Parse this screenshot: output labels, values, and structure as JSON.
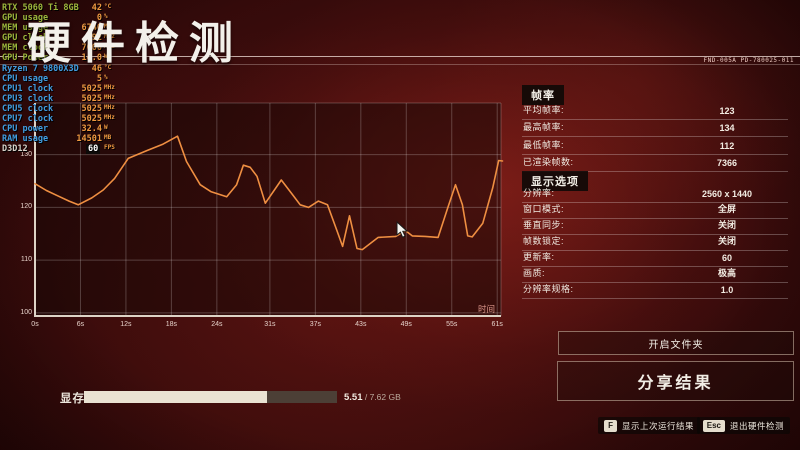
{
  "title": "硬件检测",
  "header_code": "FND-005A PD-780025-011",
  "colors": {
    "accent_orange": "#ef8f42",
    "gpu_label_green": "#9db53c",
    "cpu_label_blue": "#419ee2",
    "background_red": "#4a1010",
    "axis_white": "#ddd3c6"
  },
  "osd": {
    "rows": [
      {
        "label": "RTX 5060 Ti 8GB",
        "value": "42",
        "unit": "°C",
        "kind": "gpu"
      },
      {
        "label": "GPU usage",
        "value": "0",
        "unit": "%",
        "kind": "gpu"
      },
      {
        "label": "MEM usage",
        "value": "6740",
        "unit": "MB",
        "kind": "gpu"
      },
      {
        "label": "GPU clock",
        "value": "592",
        "unit": "MHz",
        "kind": "gpu"
      },
      {
        "label": "MEM clock",
        "value": "7000",
        "unit": "MHz",
        "kind": "gpu"
      },
      {
        "label": "GPU Power",
        "value": "14.0",
        "unit": "W",
        "kind": "gpu"
      },
      {
        "label": "Ryzen 7 9800X3D",
        "value": "46",
        "unit": "°C",
        "kind": "cpu"
      },
      {
        "label": "CPU usage",
        "value": "5",
        "unit": "%",
        "kind": "cpu"
      },
      {
        "label": "CPU1 clock",
        "value": "5025",
        "unit": "MHz",
        "kind": "cpu"
      },
      {
        "label": "CPU3 clock",
        "value": "5025",
        "unit": "MHz",
        "kind": "cpu"
      },
      {
        "label": "CPU5 clock",
        "value": "5025",
        "unit": "MHz",
        "kind": "cpu"
      },
      {
        "label": "CPU7 clock",
        "value": "5025",
        "unit": "MHz",
        "kind": "cpu"
      },
      {
        "label": "CPU power",
        "value": "32.4",
        "unit": "W",
        "kind": "cpu"
      },
      {
        "label": "RAM usage",
        "value": "14501",
        "unit": "MB",
        "kind": "cpu"
      },
      {
        "label": "D3D12",
        "value": "60",
        "unit": "FPS",
        "kind": "api"
      }
    ]
  },
  "chart_data": {
    "type": "line",
    "title": "",
    "xlabel": "时间",
    "ylabel": "",
    "xlim": [
      0,
      61.5
    ],
    "ylim": [
      99.4,
      139.8
    ],
    "grid": true,
    "x_ticks": [
      {
        "s": 0,
        "label": "0s"
      },
      {
        "s": 6,
        "label": "6s"
      },
      {
        "s": 12,
        "label": "12s"
      },
      {
        "s": 18,
        "label": "18s"
      },
      {
        "s": 24,
        "label": "24s"
      },
      {
        "s": 31,
        "label": "31s"
      },
      {
        "s": 37,
        "label": "37s"
      },
      {
        "s": 43,
        "label": "43s"
      },
      {
        "s": 49,
        "label": "49s"
      },
      {
        "s": 55,
        "label": "55s"
      },
      {
        "s": 61,
        "label": "61s"
      }
    ],
    "y_ticks": [
      {
        "v": 130,
        "label": "130"
      },
      {
        "v": 120,
        "label": "120"
      },
      {
        "v": 110,
        "label": "110"
      },
      {
        "v": 100,
        "label": "100"
      }
    ],
    "line_color": "#ef8f42",
    "series": [
      {
        "name": "fps",
        "points": [
          [
            0,
            124.5
          ],
          [
            1.5,
            123.2
          ],
          [
            3,
            122.2
          ],
          [
            4.5,
            121.2
          ],
          [
            5.7,
            120.5
          ],
          [
            7.5,
            121.8
          ],
          [
            9,
            123.3
          ],
          [
            10.5,
            125.5
          ],
          [
            12.3,
            129.3
          ],
          [
            14.8,
            130.8
          ],
          [
            16.9,
            132
          ],
          [
            18.8,
            133.5
          ],
          [
            20,
            128.7
          ],
          [
            21.8,
            124.3
          ],
          [
            23.2,
            123
          ],
          [
            25.3,
            122
          ],
          [
            26.6,
            124.3
          ],
          [
            27.5,
            128
          ],
          [
            28.4,
            127.6
          ],
          [
            29.3,
            125.9
          ],
          [
            30.4,
            120.8
          ],
          [
            32.5,
            125.2
          ],
          [
            34,
            122.4
          ],
          [
            35,
            120.5
          ],
          [
            36.1,
            120
          ],
          [
            37.4,
            121.2
          ],
          [
            38.6,
            120.5
          ],
          [
            39.9,
            115.4
          ],
          [
            40.6,
            112.6
          ],
          [
            41.5,
            118.4
          ],
          [
            42.5,
            112.2
          ],
          [
            43.2,
            112
          ],
          [
            45.3,
            114.3
          ],
          [
            47.6,
            114.5
          ],
          [
            48.9,
            115.6
          ],
          [
            49.8,
            114.6
          ],
          [
            51.5,
            114.5
          ],
          [
            53.2,
            114.3
          ],
          [
            54.4,
            119.6
          ],
          [
            55.5,
            124.3
          ],
          [
            56.4,
            120.5
          ],
          [
            57.1,
            114.6
          ],
          [
            57.7,
            114.4
          ],
          [
            59.1,
            117
          ],
          [
            60.4,
            123.7
          ],
          [
            61.2,
            128.9
          ],
          [
            61.7,
            128.8
          ]
        ]
      }
    ]
  },
  "panel_framerate": {
    "header": "帧率",
    "rows": [
      {
        "label": "平均帧率:",
        "value": "123"
      },
      {
        "label": "最高帧率:",
        "value": "134"
      },
      {
        "label": "最低帧率:",
        "value": "112"
      },
      {
        "label": "已渲染帧数:",
        "value": "7366"
      }
    ]
  },
  "panel_display": {
    "header": "显示选项",
    "rows": [
      {
        "label": "分辨率:",
        "value": "2560 x 1440"
      },
      {
        "label": "窗口模式:",
        "value": "全屏"
      },
      {
        "label": "垂直同步:",
        "value": "关闭"
      },
      {
        "label": "帧数锁定:",
        "value": "关闭"
      },
      {
        "label": "更新率:",
        "value": "60"
      },
      {
        "label": "画质:",
        "value": "极高"
      },
      {
        "label": "分辨率规格:",
        "value": "1.0"
      }
    ]
  },
  "buttons": {
    "open_folder": "开启文件夹",
    "share": "分享结果"
  },
  "hotkeys": {
    "show_last": {
      "key": "F",
      "label": "显示上次运行结果"
    },
    "exit": {
      "key": "Esc",
      "label": "退出硬件检测"
    }
  },
  "vram": {
    "label": "显存",
    "used": "5.51",
    "total_suffix": " / 7.62 GB",
    "percent": 72.3
  }
}
